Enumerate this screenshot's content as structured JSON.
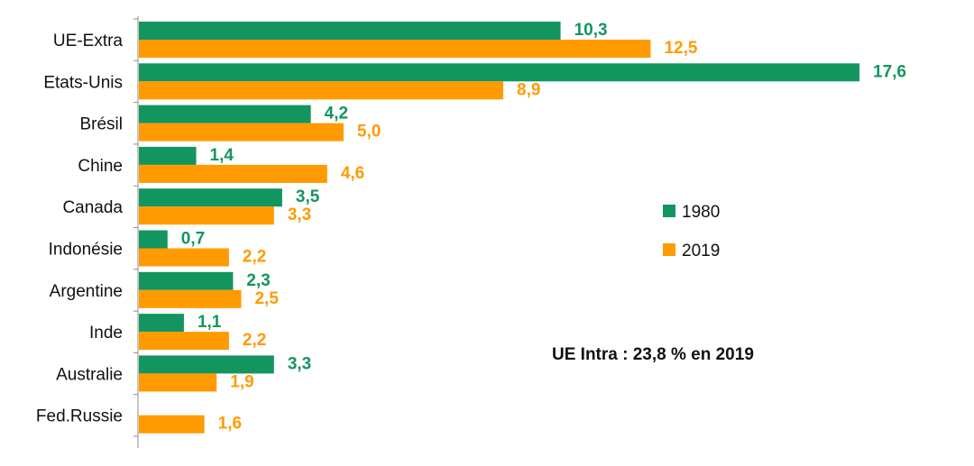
{
  "chart_data": {
    "type": "bar",
    "orientation": "horizontal",
    "categories": [
      "UE-Extra",
      "Etats-Unis",
      "Brésil",
      "Chine",
      "Canada",
      "Indonésie",
      "Argentine",
      "Inde",
      "Australie",
      "Fed.Russie"
    ],
    "series": [
      {
        "name": "1980",
        "color": "#13955f",
        "values": [
          10.3,
          17.6,
          4.2,
          1.4,
          3.5,
          0.7,
          2.3,
          1.1,
          3.3,
          null
        ],
        "labels": [
          "10,3",
          "17,6",
          "4,2",
          "1,4",
          "3,5",
          "0,7",
          "2,3",
          "1,1",
          "3,3",
          ""
        ]
      },
      {
        "name": "2019",
        "color": "#ff9b00",
        "values": [
          12.5,
          8.9,
          5.0,
          4.6,
          3.3,
          2.2,
          2.5,
          2.2,
          1.9,
          1.6
        ],
        "labels": [
          "12,5",
          "8,9",
          "5,0",
          "4,6",
          "3,3",
          "2,2",
          "2,5",
          "2,2",
          "1,9",
          "1,6"
        ]
      }
    ],
    "xlim": [
      0,
      18
    ],
    "legend_position": "right",
    "annotation": "UE Intra : 23,8 % en 2019",
    "title": "",
    "xlabel": "",
    "ylabel": ""
  }
}
